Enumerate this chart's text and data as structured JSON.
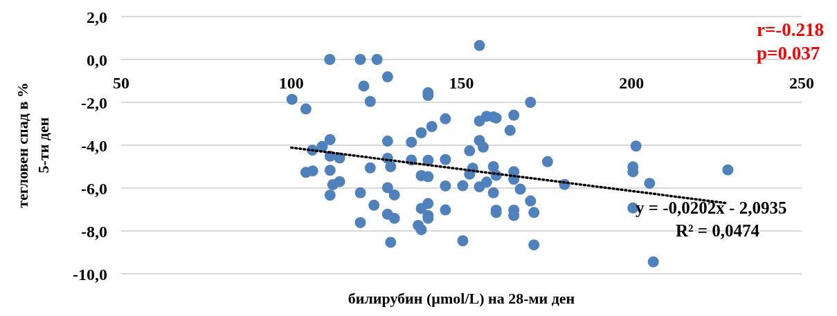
{
  "chart_data": {
    "type": "scatter",
    "xlabel": "билирубин (µmol/L) на 28-ми ден",
    "ylabel": "тегловен спад в %\n5-ти ден",
    "annotations": [
      "r=-0.218",
      "p=0.037",
      "y = -0,0202x - 2,0935",
      "R² = 0,0474"
    ],
    "xlim": [
      50,
      250
    ],
    "xticks": [
      50,
      100,
      150,
      200,
      250
    ],
    "ylim": [
      -10,
      2
    ],
    "yticks": [
      {
        "value": -10,
        "label": "-10,0"
      },
      {
        "value": -8,
        "label": "-8,0"
      },
      {
        "value": -6,
        "label": "-6,0"
      },
      {
        "value": -4,
        "label": "-4,0"
      },
      {
        "value": -2,
        "label": "-2,0"
      },
      {
        "value": 0,
        "label": "0,0"
      },
      {
        "value": 2,
        "label": "2,0"
      }
    ],
    "grid": "y",
    "marker": "circle",
    "legend": false,
    "series": [
      {
        "type": "scatter",
        "color": "#4f81bd",
        "x": [
          111.3,
          120.3,
          125.2,
          128.3,
          121.3,
          123.2,
          140.2,
          140.2,
          100.2,
          104.3,
          145.3,
          141.3,
          138.2,
          111.4,
          128.3,
          135.3,
          109.1,
          106.2,
          111.4,
          114.2,
          128.3,
          135.3,
          140.2,
          145.3,
          129.2,
          123.2,
          104.3,
          106.3,
          111.4,
          112.2,
          114.2,
          111.4,
          120.3,
          128.3,
          130.3,
          124.3,
          138.2,
          140.2,
          145.3,
          140.2,
          138.2,
          128.3,
          130.3,
          140.2,
          140.2,
          145.3,
          120.3,
          137.3,
          138.2,
          129.2,
          155.3,
          170.3,
          155.3,
          157.4,
          159.4,
          160.2,
          165.4,
          164.3,
          155.3,
          156.4,
          152.4,
          153.3,
          152.4,
          159.4,
          160.2,
          165.4,
          165.4,
          175.3,
          180.3,
          150.4,
          155.3,
          157.4,
          159.4,
          167.3,
          170.3,
          160.2,
          160.2,
          165.4,
          165.4,
          171.3,
          150.4,
          171.3,
          201.3,
          200.4,
          200.4,
          228.3,
          205.3,
          200.4,
          206.4
        ],
        "values": [
          0.0,
          0.0,
          0.0,
          -0.81,
          -1.24,
          -1.96,
          -1.55,
          -1.68,
          -1.86,
          -2.31,
          -2.77,
          -3.13,
          -3.42,
          -3.74,
          -3.81,
          -3.86,
          -4.06,
          -4.23,
          -4.51,
          -4.6,
          -4.61,
          -4.69,
          -4.7,
          -4.67,
          -5.0,
          -5.06,
          -5.27,
          -5.2,
          -5.17,
          -5.84,
          -5.7,
          -6.33,
          -6.22,
          -5.98,
          -6.32,
          -6.8,
          -5.42,
          -5.47,
          -5.9,
          -6.72,
          -6.95,
          -7.22,
          -7.41,
          -7.28,
          -7.41,
          -7.02,
          -7.61,
          -7.74,
          -7.94,
          -8.53,
          0.65,
          -2.0,
          -2.87,
          -2.65,
          -2.68,
          -2.73,
          -2.6,
          -3.31,
          -3.78,
          -4.09,
          -4.26,
          -5.07,
          -5.35,
          -5.0,
          -5.41,
          -5.23,
          -5.59,
          -4.77,
          -5.83,
          -5.89,
          -5.94,
          -5.72,
          -6.22,
          -6.05,
          -6.6,
          -7.03,
          -7.14,
          -7.03,
          -7.28,
          -7.14,
          -8.46,
          -8.65,
          -4.04,
          -5.01,
          -5.24,
          -5.15,
          -5.78,
          -6.93,
          -9.44
        ]
      },
      {
        "type": "line",
        "color": "#000000",
        "line_style": "dotted",
        "marker": "none",
        "x": [
          100,
          228.3
        ],
        "values": [
          -4.11,
          -6.71
        ]
      }
    ]
  }
}
